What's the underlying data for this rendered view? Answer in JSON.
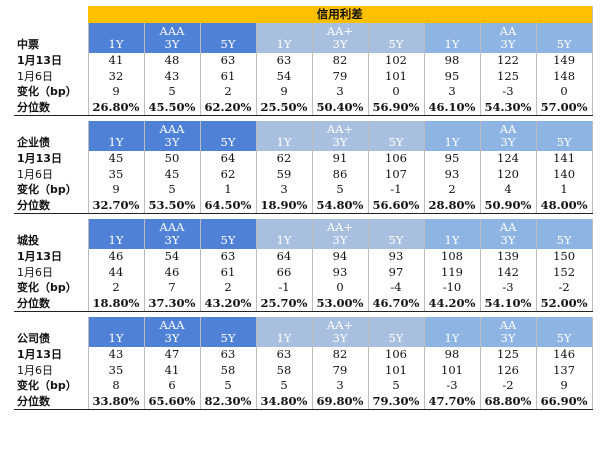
{
  "title": "信用利差",
  "rating_groups": [
    "AAA",
    "AA+",
    "AA"
  ],
  "tenors": [
    "1Y",
    "3Y",
    "5Y"
  ],
  "row_labels": {
    "current": "1月13日",
    "previous": "1月6日",
    "change": "变化（bp）",
    "percentile": "分位数"
  },
  "sections": [
    {
      "name": "中票",
      "current": [
        "41",
        "48",
        "63",
        "63",
        "82",
        "102",
        "98",
        "122",
        "149"
      ],
      "previous": [
        "32",
        "43",
        "61",
        "54",
        "79",
        "101",
        "95",
        "125",
        "148"
      ],
      "change": [
        "9",
        "5",
        "2",
        "9",
        "3",
        "0",
        "3",
        "-3",
        "0"
      ],
      "percentile": [
        "26.80%",
        "45.50%",
        "62.20%",
        "25.50%",
        "50.40%",
        "56.90%",
        "46.10%",
        "54.30%",
        "57.00%"
      ]
    },
    {
      "name": "企业债",
      "current": [
        "45",
        "50",
        "64",
        "62",
        "91",
        "106",
        "95",
        "124",
        "141"
      ],
      "previous": [
        "35",
        "45",
        "62",
        "59",
        "86",
        "107",
        "93",
        "120",
        "140"
      ],
      "change": [
        "9",
        "5",
        "1",
        "3",
        "5",
        "-1",
        "2",
        "4",
        "1"
      ],
      "percentile": [
        "32.70%",
        "53.50%",
        "64.50%",
        "18.90%",
        "54.80%",
        "56.60%",
        "28.80%",
        "50.90%",
        "48.00%"
      ]
    },
    {
      "name": "城投",
      "current": [
        "46",
        "54",
        "63",
        "64",
        "94",
        "93",
        "108",
        "139",
        "150"
      ],
      "previous": [
        "44",
        "46",
        "61",
        "66",
        "93",
        "97",
        "119",
        "142",
        "152"
      ],
      "change": [
        "2",
        "7",
        "2",
        "-1",
        "0",
        "-4",
        "-10",
        "-3",
        "-2"
      ],
      "percentile": [
        "18.80%",
        "37.30%",
        "43.20%",
        "25.70%",
        "53.00%",
        "46.70%",
        "44.20%",
        "54.10%",
        "52.00%"
      ]
    },
    {
      "name": "公司债",
      "current": [
        "43",
        "47",
        "63",
        "63",
        "82",
        "106",
        "98",
        "125",
        "146"
      ],
      "previous": [
        "35",
        "41",
        "58",
        "58",
        "79",
        "101",
        "101",
        "126",
        "137"
      ],
      "change": [
        "8",
        "6",
        "5",
        "5",
        "3",
        "5",
        "-3",
        "-2",
        "9"
      ],
      "percentile": [
        "33.80%",
        "65.60%",
        "82.30%",
        "34.80%",
        "69.80%",
        "79.30%",
        "47.70%",
        "68.80%",
        "66.90%"
      ]
    }
  ]
}
